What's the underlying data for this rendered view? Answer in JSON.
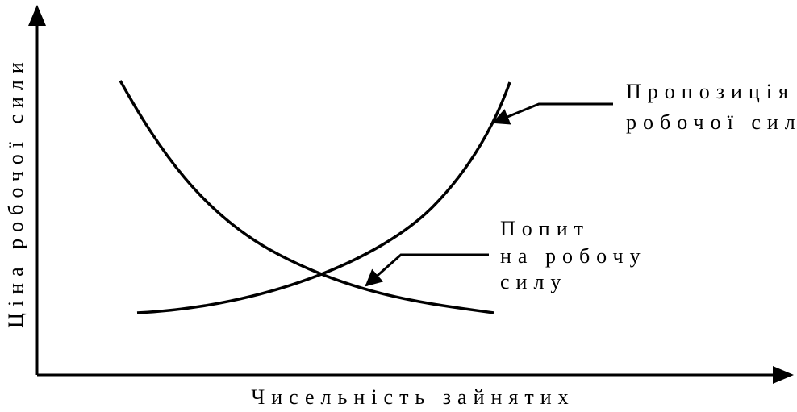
{
  "chart_data": {
    "type": "line",
    "title": "",
    "xlabel": "Чисельність зайнятих",
    "ylabel": "Ціна робочої сили",
    "grid": false,
    "axis_ticks": false,
    "series": [
      {
        "name": "Пропозиція робочої сили",
        "shape": "convex-increasing",
        "annotation_lines": [
          "Пропозиція",
          "робочої сили"
        ]
      },
      {
        "name": "Попит на робочу силу",
        "shape": "convex-decreasing",
        "annotation_lines": [
          "Попит",
          "на робочу",
          "силу"
        ]
      }
    ],
    "colors": {
      "ink": "#000000",
      "background": "#ffffff"
    }
  }
}
